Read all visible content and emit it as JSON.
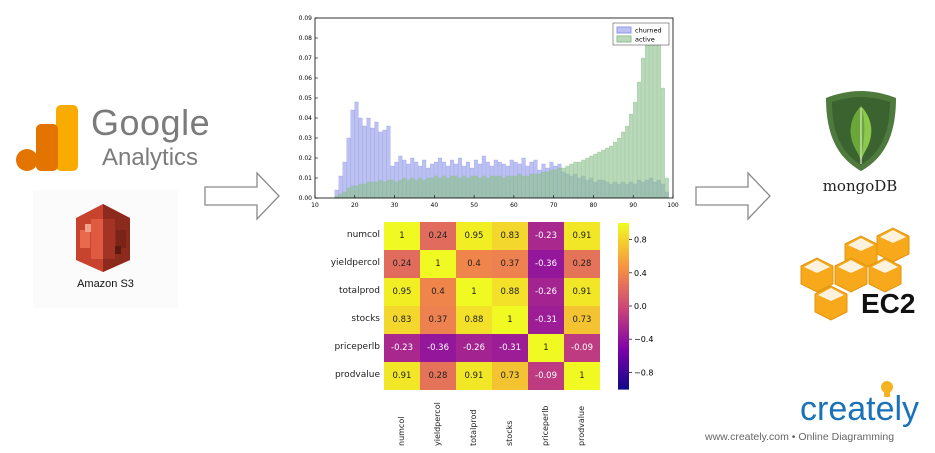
{
  "left": {
    "google": "Google",
    "analytics": "Analytics",
    "s3_label": "Amazon S3"
  },
  "right": {
    "mongo_label": "mongoDB",
    "ec2_label": "EC2",
    "creately_logo": "creately",
    "footer": "www.creately.com • Online Diagramming"
  },
  "chart_data": [
    {
      "type": "bar",
      "title": "",
      "xlabel": "",
      "ylabel": "",
      "xlim": [
        10,
        100
      ],
      "ylim": [
        0,
        0.09
      ],
      "x_ticks": [
        10,
        20,
        30,
        40,
        50,
        60,
        70,
        80,
        90,
        100
      ],
      "y_ticks": [
        "0.00",
        "0.01",
        "0.02",
        "0.03",
        "0.04",
        "0.05",
        "0.06",
        "0.07",
        "0.08",
        "0.09"
      ],
      "legend": {
        "placement": "top-right"
      },
      "series": [
        {
          "name": "churned",
          "color": "#8f98e8",
          "x": [
            15,
            16,
            17,
            18,
            19,
            20,
            21,
            22,
            23,
            24,
            25,
            26,
            27,
            28,
            29,
            30,
            31,
            32,
            33,
            34,
            35,
            36,
            37,
            38,
            39,
            40,
            41,
            42,
            43,
            44,
            45,
            46,
            47,
            48,
            49,
            50,
            51,
            52,
            53,
            54,
            55,
            56,
            57,
            58,
            59,
            60,
            61,
            62,
            63,
            64,
            65,
            66,
            67,
            68,
            69,
            70,
            71,
            72,
            73,
            74,
            75,
            76,
            77,
            78,
            79,
            80,
            81,
            82,
            83,
            84,
            85,
            86,
            87,
            88,
            89,
            90,
            91,
            92,
            93,
            94,
            95,
            96,
            97,
            98
          ],
          "values": [
            0.004,
            0.011,
            0.018,
            0.03,
            0.044,
            0.048,
            0.04,
            0.036,
            0.04,
            0.035,
            0.038,
            0.033,
            0.034,
            0.036,
            0.016,
            0.018,
            0.021,
            0.019,
            0.017,
            0.02,
            0.018,
            0.016,
            0.019,
            0.015,
            0.017,
            0.018,
            0.02,
            0.018,
            0.016,
            0.019,
            0.017,
            0.02,
            0.016,
            0.018,
            0.015,
            0.019,
            0.017,
            0.021,
            0.018,
            0.016,
            0.019,
            0.018,
            0.017,
            0.016,
            0.019,
            0.018,
            0.017,
            0.02,
            0.016,
            0.018,
            0.019,
            0.014,
            0.017,
            0.015,
            0.018,
            0.016,
            0.017,
            0.013,
            0.012,
            0.011,
            0.012,
            0.01,
            0.011,
            0.009,
            0.01,
            0.008,
            0.009,
            0.009,
            0.008,
            0.007,
            0.008,
            0.007,
            0.008,
            0.007,
            0.008,
            0.007,
            0.009,
            0.008,
            0.009,
            0.01,
            0.008,
            0.009,
            0.007,
            0.003
          ]
        },
        {
          "name": "active",
          "color": "#8cc08c",
          "x": [
            15,
            16,
            17,
            18,
            19,
            20,
            21,
            22,
            23,
            24,
            25,
            26,
            27,
            28,
            29,
            30,
            31,
            32,
            33,
            34,
            35,
            36,
            37,
            38,
            39,
            40,
            41,
            42,
            43,
            44,
            45,
            46,
            47,
            48,
            49,
            50,
            51,
            52,
            53,
            54,
            55,
            56,
            57,
            58,
            59,
            60,
            61,
            62,
            63,
            64,
            65,
            66,
            67,
            68,
            69,
            70,
            71,
            72,
            73,
            74,
            75,
            76,
            77,
            78,
            79,
            80,
            81,
            82,
            83,
            84,
            85,
            86,
            87,
            88,
            89,
            90,
            91,
            92,
            93,
            94,
            95,
            96,
            97,
            98
          ],
          "values": [
            0.001,
            0.002,
            0.003,
            0.005,
            0.006,
            0.006,
            0.007,
            0.007,
            0.008,
            0.008,
            0.008,
            0.009,
            0.008,
            0.009,
            0.009,
            0.008,
            0.009,
            0.01,
            0.009,
            0.01,
            0.009,
            0.01,
            0.009,
            0.01,
            0.01,
            0.011,
            0.01,
            0.011,
            0.01,
            0.011,
            0.011,
            0.01,
            0.011,
            0.01,
            0.011,
            0.011,
            0.01,
            0.011,
            0.01,
            0.011,
            0.011,
            0.011,
            0.01,
            0.011,
            0.011,
            0.011,
            0.012,
            0.011,
            0.011,
            0.012,
            0.012,
            0.012,
            0.013,
            0.013,
            0.014,
            0.014,
            0.015,
            0.015,
            0.016,
            0.017,
            0.018,
            0.018,
            0.019,
            0.02,
            0.021,
            0.022,
            0.023,
            0.024,
            0.025,
            0.026,
            0.028,
            0.03,
            0.033,
            0.036,
            0.042,
            0.048,
            0.058,
            0.07,
            0.08,
            0.083,
            0.085,
            0.078,
            0.055,
            0.01
          ]
        }
      ]
    },
    {
      "type": "heatmap",
      "title": "",
      "rows": [
        "numcol",
        "yieldpercol",
        "totalprod",
        "stocks",
        "priceperlb",
        "prodvalue"
      ],
      "columns": [
        "numcol",
        "yieldpercol",
        "totalprod",
        "stocks",
        "priceperlb",
        "prodvalue"
      ],
      "values": [
        [
          1,
          0.24,
          0.95,
          0.83,
          -0.23,
          0.91
        ],
        [
          0.24,
          1,
          0.4,
          0.37,
          -0.36,
          0.28
        ],
        [
          0.95,
          0.4,
          1,
          0.88,
          -0.26,
          0.91
        ],
        [
          0.83,
          0.37,
          0.88,
          1,
          -0.31,
          0.73
        ],
        [
          -0.23,
          -0.36,
          -0.26,
          -0.31,
          1,
          -0.09
        ],
        [
          0.91,
          0.28,
          0.91,
          0.73,
          -0.09,
          1
        ]
      ],
      "labels": [
        [
          "1",
          "0.24",
          "0.95",
          "0.83",
          "-0.23",
          "0.91"
        ],
        [
          "0.24",
          "1",
          "0.4",
          "0.37",
          "-0.36",
          "0.28"
        ],
        [
          "0.95",
          "0.4",
          "1",
          "0.88",
          "-0.26",
          "0.91"
        ],
        [
          "0.83",
          "0.37",
          "0.88",
          "1",
          "-0.31",
          "0.73"
        ],
        [
          "-0.23",
          "-0.36",
          "-0.26",
          "-0.31",
          "1",
          "-0.09"
        ],
        [
          "0.91",
          "0.28",
          "0.91",
          "0.73",
          "-0.09",
          "1"
        ]
      ],
      "colorbar_ticks": [
        "0.8",
        "0.4",
        "0.0",
        "−0.4",
        "−0.8"
      ],
      "colorbar_tick_values": [
        0.8,
        0.4,
        0.0,
        -0.4,
        -0.8
      ],
      "vmin": -1,
      "vmax": 1,
      "colormap": "plasma"
    }
  ]
}
